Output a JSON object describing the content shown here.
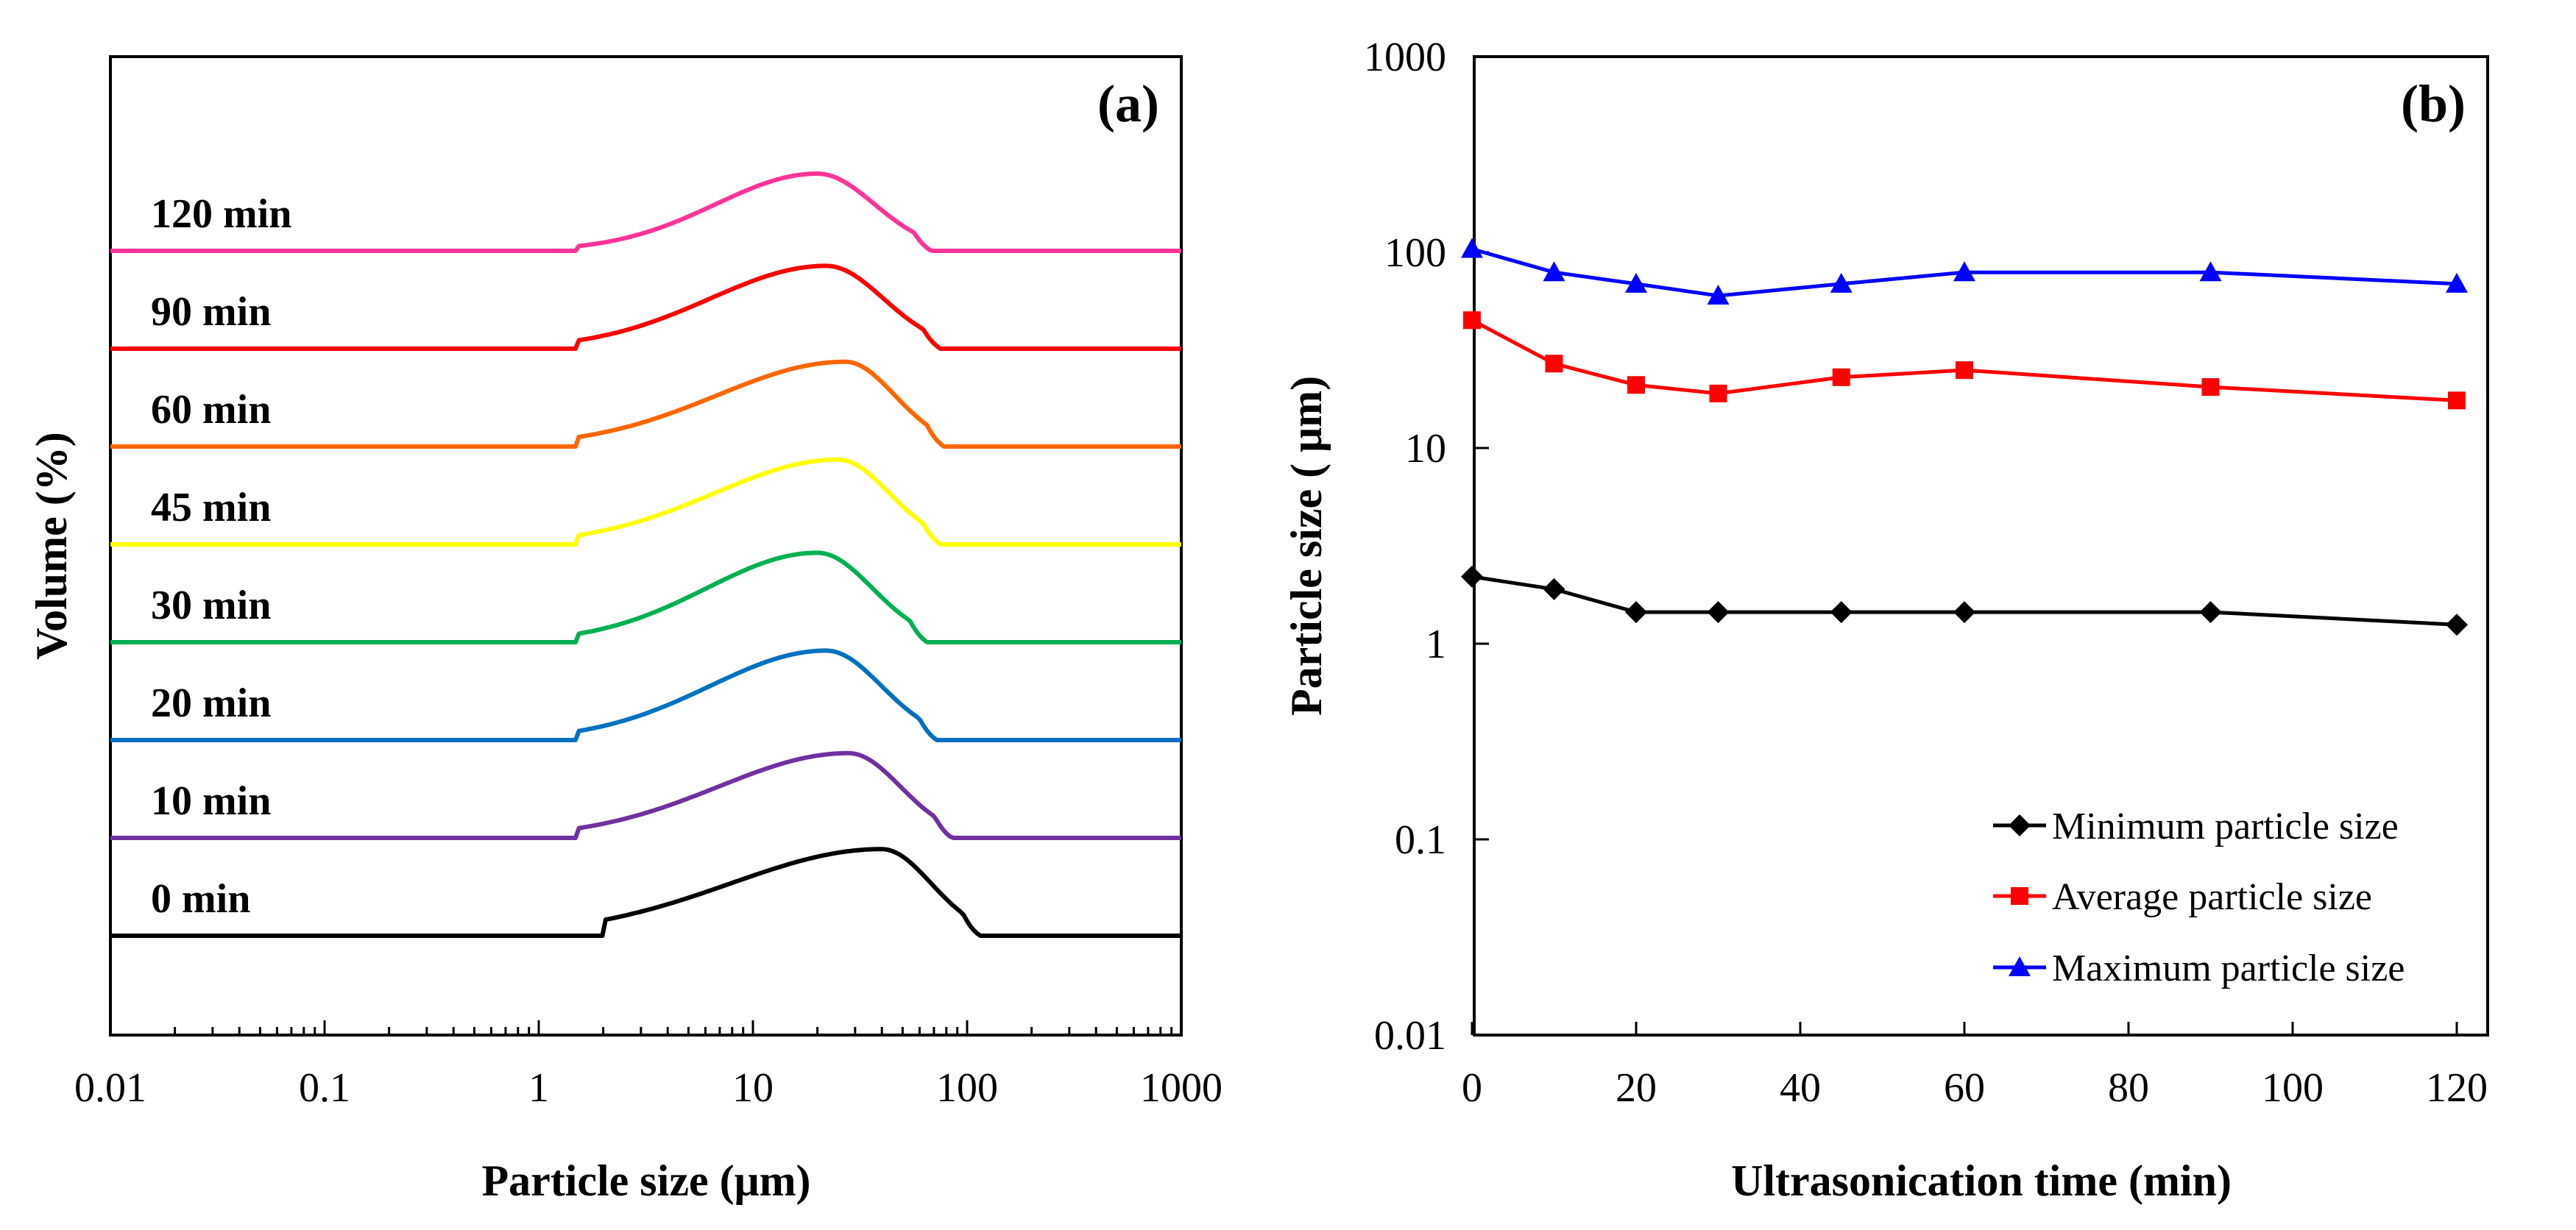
{
  "chart_data": [
    {
      "type": "line",
      "panel": "(a)",
      "xscale": "log",
      "xlabel": "Particle size (μm)",
      "ylabel": "Volume (%)",
      "xlim": [
        0.01,
        1000
      ],
      "x_tick_labels": [
        "0.01",
        "0.1",
        "1",
        "10",
        "100",
        "1000"
      ],
      "y_ticks_shown": false,
      "curve_shape": "stacked, offset volume distributions; each rises from a flat baseline near 1.5–2 μm, peaks around 20–40 μm and returns to baseline near 60–110 μm",
      "series": [
        {
          "name": "0 min",
          "color": "#000000",
          "peak_um": 40,
          "onset_um": 2.0,
          "end_um": 115,
          "shoulder_um": 3.0,
          "peak_height": 0.92,
          "shoulder_height": 0.08
        },
        {
          "name": "10 min",
          "color": "#7030A0",
          "peak_um": 28,
          "onset_um": 1.5,
          "end_um": 85,
          "shoulder_um": 3.0,
          "peak_height": 0.9,
          "shoulder_height": 0.1
        },
        {
          "name": "20 min",
          "color": "#0070C0",
          "peak_um": 22,
          "onset_um": 1.5,
          "end_um": 72,
          "shoulder_um": 3.0,
          "peak_height": 0.95,
          "shoulder_height": 0.12
        },
        {
          "name": "30 min",
          "color": "#00B050",
          "peak_um": 20,
          "onset_um": 1.5,
          "end_um": 65,
          "shoulder_um": 3.0,
          "peak_height": 0.95,
          "shoulder_height": 0.12
        },
        {
          "name": "45 min",
          "color": "#FFFF00",
          "peak_um": 25,
          "onset_um": 1.5,
          "end_um": 75,
          "shoulder_um": 3.0,
          "peak_height": 0.9,
          "shoulder_height": 0.12
        },
        {
          "name": "60 min",
          "color": "#FF6600",
          "peak_um": 27,
          "onset_um": 1.5,
          "end_um": 78,
          "shoulder_um": 3.0,
          "peak_height": 0.9,
          "shoulder_height": 0.1
        },
        {
          "name": "90 min",
          "color": "#FF0000",
          "peak_um": 22,
          "onset_um": 1.5,
          "end_um": 75,
          "shoulder_um": 3.0,
          "peak_height": 0.88,
          "shoulder_height": 0.15
        },
        {
          "name": "120 min",
          "color": "#FF3399",
          "peak_um": 20,
          "onset_um": 1.5,
          "end_um": 68,
          "shoulder_um": 3.5,
          "peak_height": 0.82,
          "shoulder_height": 0.22
        }
      ]
    },
    {
      "type": "line",
      "panel": "(b)",
      "yscale": "log",
      "xlabel": "Ultrasonication time (min)",
      "ylabel": "Particle size ( μm)",
      "xlim": [
        0,
        120
      ],
      "ylim": [
        0.01,
        1000
      ],
      "x_ticks": [
        0,
        20,
        40,
        60,
        80,
        100,
        120
      ],
      "y_ticks": [
        0.01,
        0.1,
        1,
        10,
        100,
        1000
      ],
      "y_tick_labels": [
        "0.01",
        "0.1",
        "1",
        "10",
        "100",
        "1000"
      ],
      "legend_position": "bottom-right",
      "series": [
        {
          "name": "Minimum particle size",
          "color": "#000000",
          "marker": "diamond",
          "x": [
            0,
            10,
            20,
            30,
            45,
            60,
            90,
            120
          ],
          "y": [
            2.2,
            1.9,
            1.45,
            1.45,
            1.45,
            1.45,
            1.45,
            1.25
          ]
        },
        {
          "name": "Average particle size",
          "color": "#FF0000",
          "marker": "square",
          "x": [
            0,
            10,
            20,
            30,
            45,
            60,
            90,
            120
          ],
          "y": [
            45,
            27,
            21,
            19,
            23,
            25,
            20.5,
            17.5
          ]
        },
        {
          "name": "Maximum particle size",
          "color": "#0000FF",
          "marker": "triangle",
          "x": [
            0,
            10,
            20,
            30,
            45,
            60,
            90,
            120
          ],
          "y": [
            104,
            79,
            69,
            60,
            69,
            79,
            79,
            69
          ]
        }
      ]
    }
  ]
}
